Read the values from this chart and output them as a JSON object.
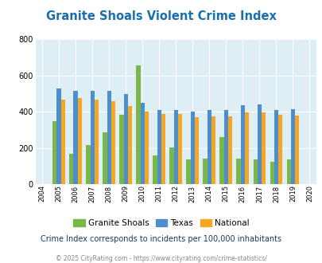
{
  "title": "Granite Shoals Violent Crime Index",
  "years": [
    2004,
    2005,
    2006,
    2007,
    2008,
    2009,
    2010,
    2011,
    2012,
    2013,
    2014,
    2015,
    2016,
    2017,
    2018,
    2019,
    2020
  ],
  "granite_shoals": [
    null,
    348,
    168,
    218,
    285,
    383,
    657,
    160,
    202,
    138,
    140,
    262,
    140,
    135,
    122,
    135,
    null
  ],
  "texas": [
    null,
    530,
    515,
    515,
    515,
    498,
    450,
    408,
    408,
    403,
    408,
    412,
    435,
    440,
    412,
    415,
    null
  ],
  "national": [
    null,
    469,
    474,
    469,
    458,
    430,
    403,
    387,
    387,
    370,
    376,
    373,
    397,
    397,
    385,
    381,
    null
  ],
  "color_granite": "#7ab648",
  "color_texas": "#4d8fcc",
  "color_national": "#f5a623",
  "bg_color": "#deeef5",
  "ylim": [
    0,
    800
  ],
  "yticks": [
    0,
    200,
    400,
    600,
    800
  ],
  "bar_width": 0.25,
  "title_color": "#1a6faf",
  "subtitle": "Crime Index corresponds to incidents per 100,000 inhabitants",
  "footer": "© 2025 CityRating.com - https://www.cityrating.com/crime-statistics/",
  "legend_labels": [
    "Granite Shoals",
    "Texas",
    "National"
  ],
  "subtitle_color": "#1a3a5c",
  "footer_color": "#888888"
}
